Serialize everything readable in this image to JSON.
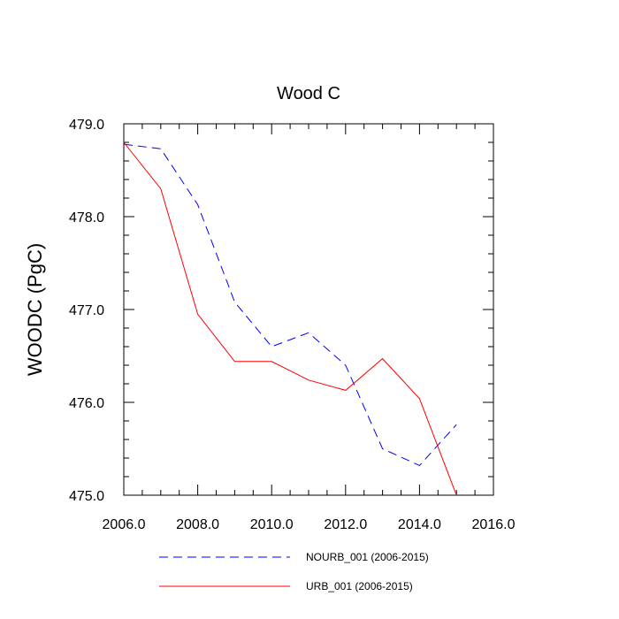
{
  "chart_data": {
    "type": "line",
    "title": "Wood C",
    "xlabel": "",
    "ylabel": "WOODC  (PgC)",
    "xlim": [
      2006,
      2016
    ],
    "ylim": [
      475.0,
      479.0
    ],
    "x_ticks": [
      2006,
      2008,
      2010,
      2012,
      2014,
      2016
    ],
    "x_tick_labels": [
      "2006.0",
      "2008.0",
      "2010.0",
      "2012.0",
      "2014.0",
      "2016.0"
    ],
    "y_ticks": [
      475,
      476,
      477,
      478,
      479
    ],
    "y_tick_labels": [
      "475.0",
      "476.0",
      "477.0",
      "478.0",
      "479.0"
    ],
    "x": [
      2006,
      2007,
      2008,
      2009,
      2010,
      2011,
      2012,
      2013,
      2014,
      2015
    ],
    "series": [
      {
        "name": "NOURB_001 (2006-2015)",
        "color": "#0000ff",
        "style": "dashed",
        "values": [
          478.78,
          478.73,
          478.13,
          477.08,
          476.6,
          476.75,
          476.4,
          475.5,
          475.32,
          475.76
        ]
      },
      {
        "name": "URB_001 (2006-2015)",
        "color": "#ff0000",
        "style": "solid",
        "values": [
          478.8,
          478.3,
          476.95,
          476.44,
          476.44,
          476.24,
          476.13,
          476.47,
          476.04,
          475.0
        ]
      }
    ],
    "legend_position": "bottom"
  }
}
